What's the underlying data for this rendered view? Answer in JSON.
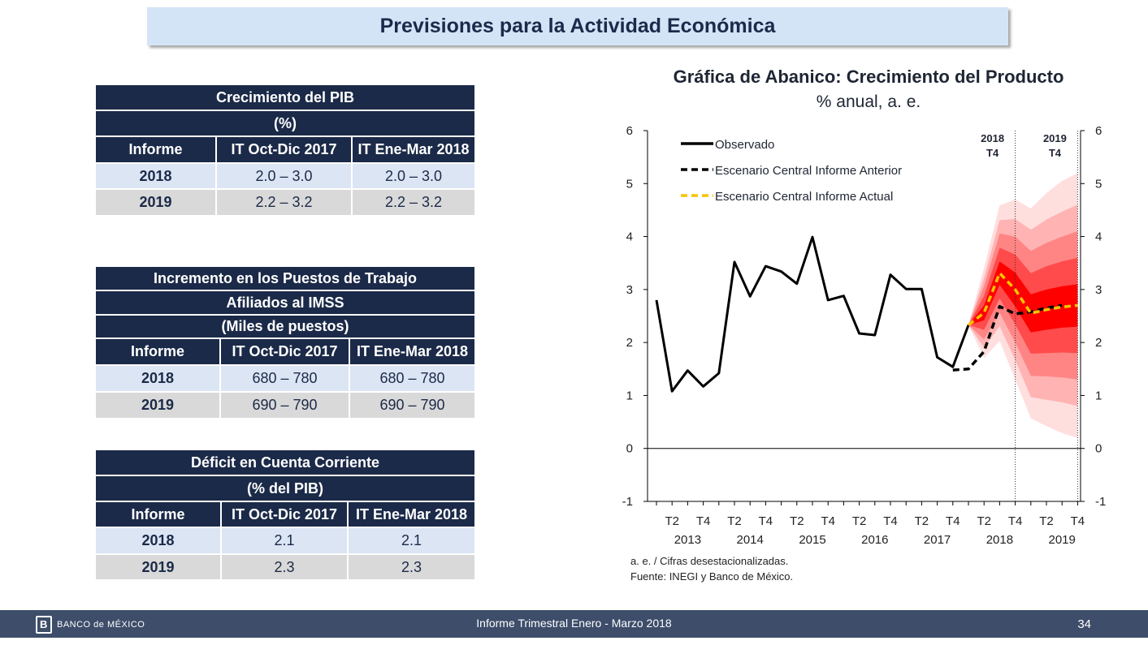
{
  "slide_title": "Previsiones para la Actividad Económica",
  "footer": {
    "logo_text": "BANCO de MÉXICO",
    "center_text": "Informe Trimestral Enero - Marzo 2018",
    "page_number": "34"
  },
  "tables": [
    {
      "title": "Crecimiento del PIB",
      "title2": "",
      "subtitle": "(%)",
      "columns": [
        "Informe",
        "IT Oct-Dic 2017",
        "IT Ene-Mar 2018"
      ],
      "rows": [
        [
          "2018",
          "2.0 – 3.0",
          "2.0 – 3.0"
        ],
        [
          "2019",
          "2.2 – 3.2",
          "2.2 – 3.2"
        ]
      ]
    },
    {
      "title": "Incremento en los Puestos de Trabajo",
      "title2": "Afiliados al IMSS",
      "subtitle": "(Miles de puestos)",
      "columns": [
        "Informe",
        "IT Oct-Dic 2017",
        "IT Ene-Mar 2018"
      ],
      "rows": [
        [
          "2018",
          "680 – 780",
          "680 – 780"
        ],
        [
          "2019",
          "690 – 790",
          "690 – 790"
        ]
      ]
    },
    {
      "title": "Déficit en Cuenta Corriente",
      "title2": "",
      "subtitle": "(% del PIB)",
      "columns": [
        "Informe",
        "IT Oct-Dic 2017",
        "IT Ene-Mar 2018"
      ],
      "rows": [
        [
          "2018",
          "2.1",
          "2.1"
        ],
        [
          "2019",
          "2.3",
          "2.3"
        ]
      ]
    }
  ],
  "chart_data": {
    "type": "line",
    "title": "Gráfica de Abanico: Crecimiento del Producto",
    "subtitle": "% anual, a. e.",
    "ylim": [
      -1,
      6
    ],
    "yticks": [
      "-1",
      "0",
      "1",
      "2",
      "3",
      "4",
      "5",
      "6"
    ],
    "grid": false,
    "legend_position": "top-left",
    "x_quarters": [
      "2013T1",
      "2013T2",
      "2013T3",
      "2013T4",
      "2014T1",
      "2014T2",
      "2014T3",
      "2014T4",
      "2015T1",
      "2015T2",
      "2015T3",
      "2015T4",
      "2016T1",
      "2016T2",
      "2016T3",
      "2016T4",
      "2017T1",
      "2017T2",
      "2017T3",
      "2017T4",
      "2018T1",
      "2018T2",
      "2018T3",
      "2018T4",
      "2019T1",
      "2019T2",
      "2019T3",
      "2019T4"
    ],
    "x_tick_labels": [
      {
        "quarter": "2013T2",
        "label": "T2"
      },
      {
        "quarter": "2013T4",
        "label": "T4"
      },
      {
        "quarter": "2014T2",
        "label": "T2"
      },
      {
        "quarter": "2014T4",
        "label": "T4"
      },
      {
        "quarter": "2015T2",
        "label": "T2"
      },
      {
        "quarter": "2015T4",
        "label": "T4"
      },
      {
        "quarter": "2016T2",
        "label": "T2"
      },
      {
        "quarter": "2016T4",
        "label": "T4"
      },
      {
        "quarter": "2017T2",
        "label": "T2"
      },
      {
        "quarter": "2017T4",
        "label": "T4"
      },
      {
        "quarter": "2018T2",
        "label": "T2"
      },
      {
        "quarter": "2018T4",
        "label": "T4"
      },
      {
        "quarter": "2019T2",
        "label": "T2"
      },
      {
        "quarter": "2019T4",
        "label": "T4"
      }
    ],
    "year_labels": [
      {
        "year": "2013",
        "center": "2013T3"
      },
      {
        "year": "2014",
        "center": "2014T3"
      },
      {
        "year": "2015",
        "center": "2015T3"
      },
      {
        "year": "2016",
        "center": "2016T3"
      },
      {
        "year": "2017",
        "center": "2017T3"
      },
      {
        "year": "2018",
        "center": "2018T3"
      },
      {
        "year": "2019",
        "center": "2019T3"
      }
    ],
    "vertical_markers": [
      {
        "quarter": "2018T4",
        "label1": "2018",
        "label2": "T4"
      },
      {
        "quarter": "2019T4",
        "label1": "2019",
        "label2": "T4"
      }
    ],
    "series": [
      {
        "name": "Observado",
        "style": "solid",
        "color": "#000000",
        "start": "2013T1",
        "values": [
          2.8,
          1.08,
          1.47,
          1.17,
          1.42,
          3.52,
          2.87,
          3.44,
          3.34,
          3.11,
          3.99,
          2.8,
          2.88,
          2.17,
          2.14,
          3.28,
          3.01,
          3.01,
          1.72,
          1.54,
          2.33
        ]
      },
      {
        "name": "Escenario Central Informe Anterior",
        "style": "dashed",
        "color": "#000000",
        "start": "2017T4",
        "values": [
          1.48,
          1.5,
          1.83,
          2.68,
          2.54,
          2.58,
          2.65,
          2.7
        ]
      },
      {
        "name": "Escenario Central Informe Actual",
        "style": "dashed",
        "color": "#f5c400",
        "start": "2018T1",
        "values": [
          2.33,
          2.56,
          3.31,
          3.0,
          2.55,
          2.62,
          2.67,
          2.7
        ]
      }
    ],
    "fan": {
      "start": "2018T1",
      "center_series": "Escenario Central Informe Actual",
      "half_widths": [
        [
          0.0,
          0.14,
          0.22,
          0.32,
          0.36,
          0.38,
          0.39,
          0.4
        ],
        [
          0.0,
          0.32,
          0.48,
          0.66,
          0.76,
          0.82,
          0.86,
          0.9
        ],
        [
          0.0,
          0.5,
          0.75,
          1.0,
          1.18,
          1.26,
          1.33,
          1.4
        ],
        [
          0.0,
          0.66,
          1.0,
          1.33,
          1.58,
          1.7,
          1.8,
          1.9
        ],
        [
          0.0,
          0.85,
          1.28,
          1.7,
          1.98,
          2.2,
          2.38,
          2.5
        ]
      ],
      "colors": [
        "#ff0000",
        "#ff4b4b",
        "#ff8585",
        "#ffb3b3",
        "#ffdede"
      ]
    },
    "notes": [
      "a. e. / Cifras desestacionalizadas.",
      "Fuente: INEGI y Banco de México."
    ]
  }
}
